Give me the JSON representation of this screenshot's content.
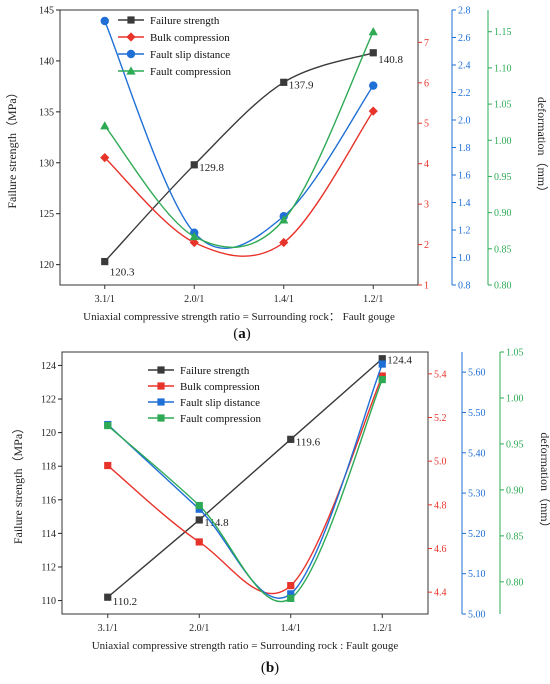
{
  "chart_data": [
    {
      "type": "line",
      "caption_letter": "a",
      "categories": [
        "3.1/1",
        "2.0/1",
        "1.4/1",
        "1.2/1"
      ],
      "xlabel": "Uniaxial compressive strength ratio = Surrounding rock： Fault gouge",
      "axes": [
        {
          "id": "y1",
          "label": "Failure strength（MPa）",
          "side": "left",
          "range": [
            118,
            145
          ],
          "ticks": [
            120,
            125,
            130,
            135,
            140,
            145
          ],
          "color": "#222222"
        },
        {
          "id": "y2",
          "label": "",
          "side": "right",
          "range": [
            1,
            7.8
          ],
          "ticks": [
            1,
            2,
            3,
            4,
            5,
            6,
            7
          ],
          "color": "#e8332a"
        },
        {
          "id": "y3",
          "label": "",
          "side": "right",
          "range": [
            0.8,
            2.8
          ],
          "ticks": [
            0.8,
            1.0,
            1.2,
            1.4,
            1.6,
            1.8,
            2.0,
            2.2,
            2.4,
            2.6,
            2.8
          ],
          "color": "#1f6fd6"
        },
        {
          "id": "y4",
          "label": "deformation（mm）",
          "side": "right",
          "range": [
            0.8,
            1.18
          ],
          "ticks": [
            0.8,
            0.85,
            0.9,
            0.95,
            1.0,
            1.05,
            1.1,
            1.15
          ],
          "color": "#2eaa55"
        }
      ],
      "series": [
        {
          "name": "Failure strength",
          "axis": "y1",
          "color": "#3a3a3a",
          "marker": "square",
          "values": [
            120.3,
            129.8,
            137.9,
            140.8
          ],
          "labels": [
            "120.3",
            "129.8",
            "137.9",
            "140.8"
          ]
        },
        {
          "name": "Bulk compression",
          "axis": "y2",
          "color": "#e8332a",
          "marker": "diamond",
          "values": [
            4.15,
            2.05,
            2.05,
            5.3
          ]
        },
        {
          "name": "Fault slip distance",
          "axis": "y3",
          "color": "#1f6fd6",
          "marker": "circle",
          "values": [
            2.72,
            1.18,
            1.3,
            2.25
          ]
        },
        {
          "name": "Fault compression",
          "axis": "y4",
          "color": "#2eaa55",
          "marker": "triangle",
          "values": [
            1.02,
            0.867,
            0.89,
            1.15
          ]
        }
      ]
    },
    {
      "type": "line",
      "caption_letter": "b",
      "categories": [
        "3.1/1",
        "2.0/1",
        "1.4/1",
        "1.2/1"
      ],
      "xlabel": "Uniaxial compressive strength ratio = Surrounding rock : Fault gouge",
      "axes": [
        {
          "id": "y1",
          "label": "Failure strength（MPa）",
          "side": "left",
          "range": [
            109.2,
            124.8
          ],
          "ticks": [
            110,
            112,
            114,
            116,
            118,
            120,
            122,
            124
          ],
          "color": "#222222"
        },
        {
          "id": "y2",
          "label": "",
          "side": "right",
          "range": [
            4.3,
            5.5
          ],
          "ticks": [
            4.4,
            4.6,
            4.8,
            5.0,
            5.2,
            5.4
          ],
          "color": "#e8332a"
        },
        {
          "id": "y3",
          "label": "",
          "side": "right",
          "range": [
            5.0,
            5.65
          ],
          "ticks": [
            5.0,
            5.1,
            5.2,
            5.3,
            5.4,
            5.5,
            5.6
          ],
          "color": "#1f6fd6"
        },
        {
          "id": "y4",
          "label": "deformation（mm）",
          "side": "right",
          "range": [
            0.765,
            1.05
          ],
          "ticks": [
            0.8,
            0.85,
            0.9,
            0.95,
            1.0,
            1.05
          ],
          "color": "#2eaa55"
        }
      ],
      "series": [
        {
          "name": "Failure strength",
          "axis": "y1",
          "color": "#3a3a3a",
          "marker": "square",
          "values": [
            110.2,
            114.8,
            119.6,
            124.4
          ],
          "labels": [
            "110.2",
            "114.8",
            "119.6",
            "124.4"
          ]
        },
        {
          "name": "Bulk compression",
          "axis": "y2",
          "color": "#e8332a",
          "marker": "square",
          "values": [
            4.98,
            4.63,
            4.43,
            5.39
          ]
        },
        {
          "name": "Fault slip distance",
          "axis": "y3",
          "color": "#1f6fd6",
          "marker": "square",
          "values": [
            5.47,
            5.26,
            5.05,
            5.62
          ]
        },
        {
          "name": "Fault compression",
          "axis": "y4",
          "color": "#2eaa55",
          "marker": "square",
          "values": [
            0.97,
            0.883,
            0.782,
            1.02
          ]
        }
      ]
    }
  ]
}
